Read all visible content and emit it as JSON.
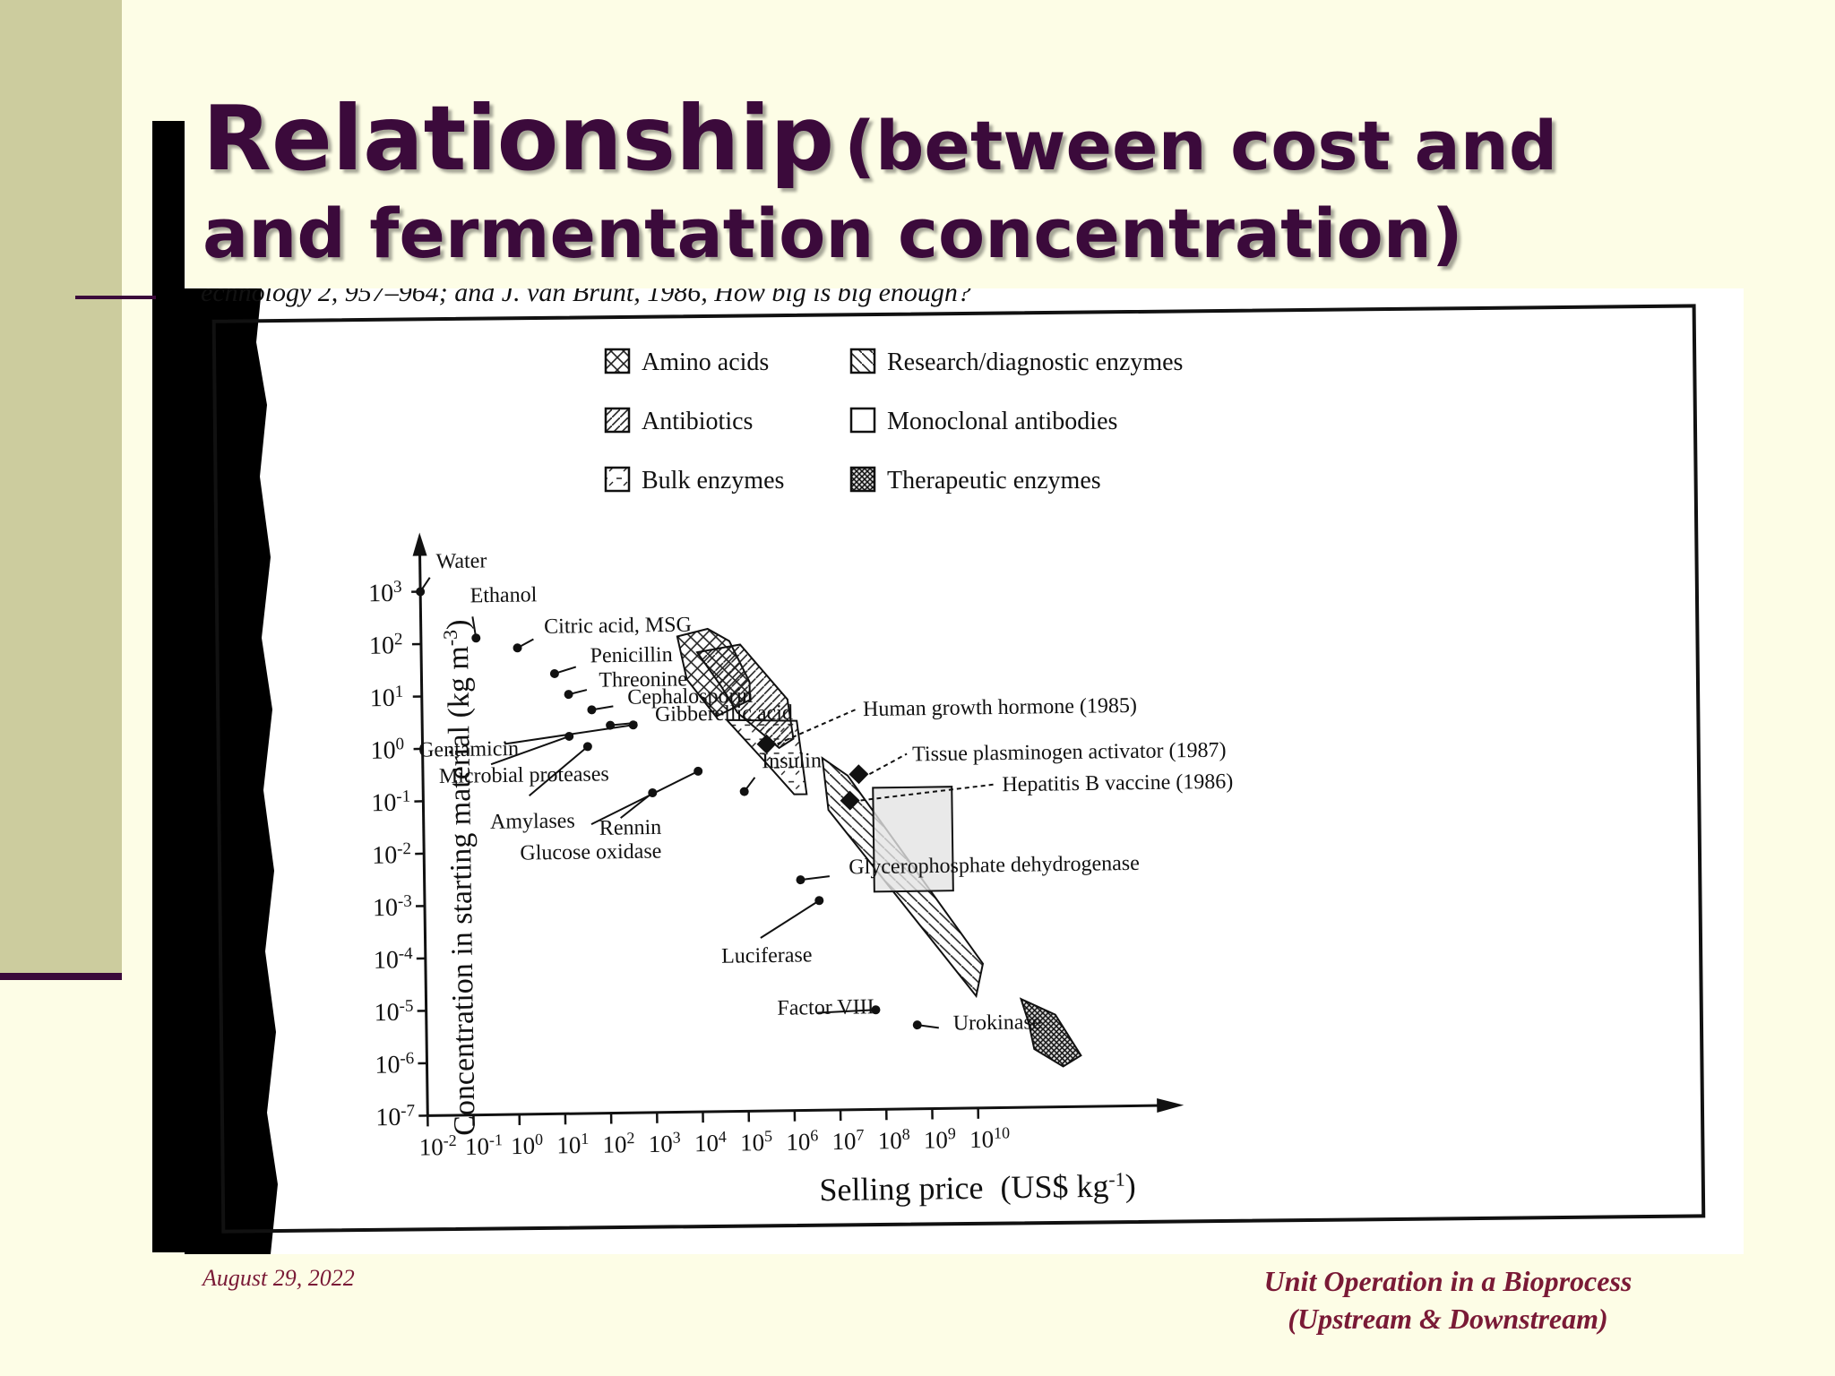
{
  "slide": {
    "title_main": "Relationship",
    "title_paren": "(between cost and",
    "title_line2": "and fermentation concentration)",
    "source_fragment": "echnology 2, 957–964; and J. van Brunt, 1986, How big is big enough?",
    "date": "August 29, 2022",
    "footer_line1": "Unit Operation in a Bioprocess",
    "footer_line2": "(Upstream & Downstream)"
  },
  "colors": {
    "title": "#3b0a3b",
    "footer": "#7a1a36",
    "sidebar": "#cccc9e",
    "background": "#fdfde6"
  },
  "chart_data": {
    "type": "scatter",
    "xlabel": "Selling price",
    "xlabel_units": "(US$ kg",
    "xlabel_units_sup": "-1",
    "ylabel": "Concentration in starting material (kg m",
    "ylabel_sup": "-3",
    "x_scale": "log",
    "y_scale": "log",
    "xlim_exp": [
      -2,
      10
    ],
    "ylim_exp": [
      -7,
      3
    ],
    "x_tick_exponents": [
      "-2",
      "-1",
      "0",
      "1",
      "2",
      "3",
      "4",
      "5",
      "6",
      "7",
      "8",
      "9",
      "10"
    ],
    "y_tick_exponents": [
      "3",
      "2",
      "1",
      "0",
      "-1",
      "-2",
      "-3",
      "-4",
      "-5",
      "-6",
      "-7"
    ],
    "tick_base": "10",
    "legend": [
      {
        "label": "Amino acids",
        "pattern": "crosshatch"
      },
      {
        "label": "Antibiotics",
        "pattern": "diagonal"
      },
      {
        "label": "Bulk enzymes",
        "pattern": "dashed"
      },
      {
        "label": "Research/diagnostic enzymes",
        "pattern": "back-diagonal"
      },
      {
        "label": "Monoclonal antibodies",
        "pattern": "open"
      },
      {
        "label": "Therapeutic enzymes",
        "pattern": "dense-crosshatch"
      }
    ],
    "points": [
      {
        "label": "Water",
        "x_exp": -2,
        "y_exp": 3
      },
      {
        "label": "Ethanol",
        "x_exp": -0.8,
        "y_exp": 2.1
      },
      {
        "label": "Citric acid, MSG",
        "x_exp": 0.1,
        "y_exp": 1.9
      },
      {
        "label": "Penicillin",
        "x_exp": 0.9,
        "y_exp": 1.4
      },
      {
        "label": "Threonine",
        "x_exp": 1.2,
        "y_exp": 1.0
      },
      {
        "label": "Cephalosporin",
        "x_exp": 1.7,
        "y_exp": 0.7
      },
      {
        "label": "Gibberellic acid",
        "x_exp": 2.1,
        "y_exp": 0.4
      },
      {
        "label": "Gentamicin",
        "x_exp": 2.6,
        "y_exp": 0.4
      },
      {
        "label": "Microbial proteases",
        "x_exp": 1.2,
        "y_exp": 0.2
      },
      {
        "label": "Amylases",
        "x_exp": 1.6,
        "y_exp": 0.0
      },
      {
        "label": "Rennin",
        "x_exp": 3.0,
        "y_exp": -0.9
      },
      {
        "label": "Glucose oxidase",
        "x_exp": 4.0,
        "y_exp": -0.5
      },
      {
        "label": "Insulin",
        "x_exp": 5.0,
        "y_exp": -0.9
      },
      {
        "label": "Human growth hormone (1985)",
        "x_exp": 5.5,
        "y_exp": 0.0,
        "marker": "diamond"
      },
      {
        "label": "Tissue plasminogen activator (1987)",
        "x_exp": 7.5,
        "y_exp": -0.6,
        "marker": "diamond"
      },
      {
        "label": "Hepatitis B vaccine (1986)",
        "x_exp": 7.3,
        "y_exp": -1.1,
        "marker": "diamond"
      },
      {
        "label": "Glycerophosphate dehydrogenase",
        "x_exp": 6.2,
        "y_exp": -2.6
      },
      {
        "label": "Luciferase",
        "x_exp": 6.6,
        "y_exp": -3.0
      },
      {
        "label": "Factor VIII",
        "x_exp": 7.8,
        "y_exp": -5.1
      },
      {
        "label": "Urokinase",
        "x_exp": 8.7,
        "y_exp": -5.4
      }
    ]
  }
}
